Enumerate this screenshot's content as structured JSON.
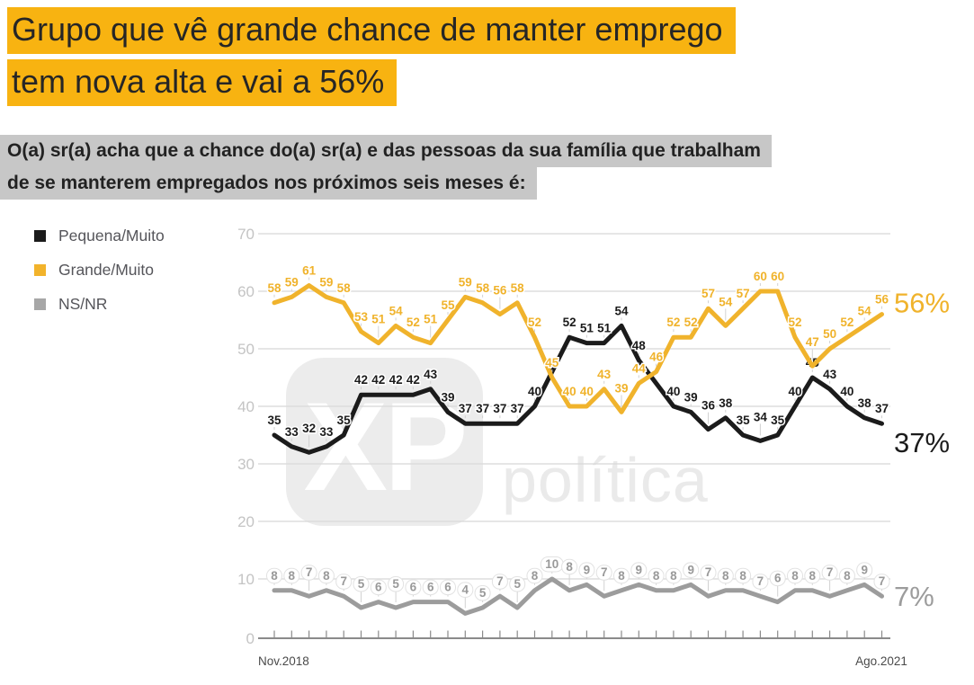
{
  "title": {
    "line1": "Grupo que vê grande chance de manter emprego",
    "line2": "tem nova alta e vai a 56%"
  },
  "subtitle": {
    "line1": "O(a) sr(a) acha que a chance do(a) sr(a) e das pessoas da sua família que trabalham",
    "line2": "de se manterem empregados nos próximos seis meses é:"
  },
  "legend": [
    {
      "label": "Pequena/Muito",
      "color": "#1B1B1B"
    },
    {
      "label": "Grande/Muito",
      "color": "#F2B32B"
    },
    {
      "label": "NS/NR",
      "color": "#A7A7A7"
    }
  ],
  "watermark": {
    "logo": "XP",
    "text": "política"
  },
  "colors": {
    "highlight_yellow": "#F8B311",
    "highlight_gray": "#C7C7C7",
    "grid": "#D8D8D8",
    "axis": "#8A8A8A",
    "y_tick_text": "#C4C4C4",
    "x_tick_text": "#4A4A4A",
    "leader_line": "#D2D2D2",
    "watermark_gray": "#ECECEC"
  },
  "chart_data": {
    "type": "line",
    "title": "Grupo que vê grande chance de manter emprego tem nova alta e vai a 56%",
    "x_axis": {
      "start_label": "Nov.2018",
      "end_label": "Ago.2021",
      "points": 36
    },
    "y_axis": {
      "min": 0,
      "max": 70,
      "ticks": [
        0,
        10,
        20,
        30,
        40,
        50,
        60,
        70
      ],
      "grid": true
    },
    "legend_position": "left",
    "series": [
      {
        "name": "Pequena/Muito",
        "color": "#1B1B1B",
        "end_label": "37%",
        "values": [
          35,
          33,
          32,
          33,
          35,
          42,
          42,
          42,
          42,
          43,
          39,
          37,
          37,
          37,
          37,
          40,
          46,
          52,
          51,
          51,
          54,
          48,
          44,
          40,
          39,
          36,
          38,
          35,
          34,
          35,
          40,
          45,
          43,
          40,
          38,
          37
        ],
        "hidden_label_indices": [
          16,
          22
        ],
        "pill_labels": false
      },
      {
        "name": "Grande/Muito",
        "color": "#F0B32C",
        "end_label": "56%",
        "values": [
          58,
          59,
          61,
          59,
          58,
          53,
          51,
          54,
          52,
          51,
          55,
          59,
          58,
          56,
          58,
          52,
          45,
          40,
          40,
          43,
          39,
          44,
          46,
          52,
          52,
          57,
          54,
          57,
          60,
          60,
          52,
          47,
          50,
          52,
          54,
          56
        ],
        "hidden_label_indices": [],
        "pill_labels": false
      },
      {
        "name": "NS/NR",
        "color": "#9C9C9C",
        "end_label": "7%",
        "values": [
          8,
          8,
          7,
          8,
          7,
          5,
          6,
          5,
          6,
          6,
          6,
          4,
          5,
          7,
          5,
          8,
          10,
          8,
          9,
          7,
          8,
          9,
          8,
          8,
          9,
          7,
          8,
          8,
          7,
          6,
          8,
          8,
          7,
          8,
          9,
          7
        ],
        "hidden_label_indices": [],
        "pill_labels": true
      }
    ]
  }
}
